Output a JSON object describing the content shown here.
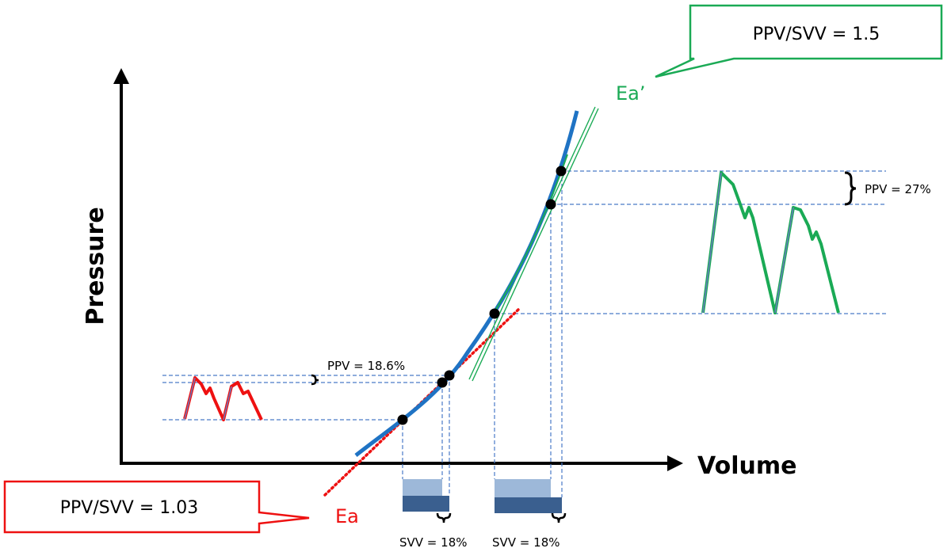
{
  "axes": {
    "y_label": "Pressure",
    "x_label": "Volume"
  },
  "callouts": {
    "green_ratio": "PPV/SVV = 1.5",
    "red_ratio": "PPV/SVV = 1.03"
  },
  "tangents": {
    "green_label": "Ea’",
    "red_label": "Ea"
  },
  "annotations": {
    "ppv_low": "PPV = 18.6%",
    "ppv_high": "PPV = 27%",
    "svv_left": "SVV = 18%",
    "svv_right": "SVV = 18%"
  },
  "colors": {
    "axis": "#000000",
    "curve": "#1f73c4",
    "green": "#1aaa55",
    "red": "#ee1111",
    "guide": "#4a7ac8",
    "bar_light": "#9db8d9",
    "bar_dark": "#3a5f8f"
  }
}
